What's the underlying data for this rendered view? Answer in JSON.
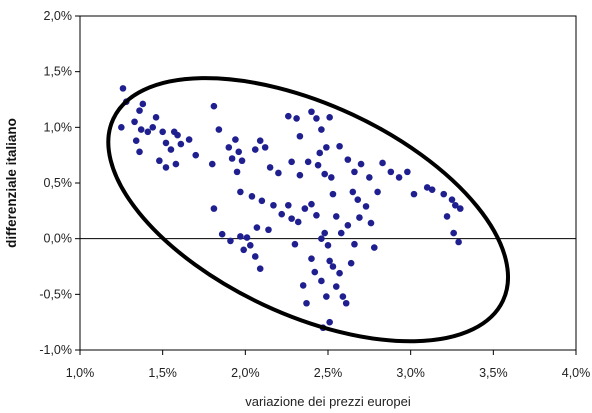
{
  "chart_data": {
    "type": "scatter",
    "title": "",
    "xlabel": "variazione dei prezzi europei",
    "ylabel": "differenziale italiano",
    "xlim": [
      1.0,
      4.0
    ],
    "ylim": [
      -1.0,
      2.0
    ],
    "x_ticks": [
      "1,0%",
      "1,5%",
      "2,0%",
      "2,5%",
      "3,0%",
      "3,5%",
      "4,0%"
    ],
    "y_ticks": [
      "2,0%",
      "1,5%",
      "1,0%",
      "0,5%",
      "0,0%",
      "-0,5%",
      "-1,0%"
    ],
    "grid": false,
    "legend": "none",
    "marker_color": "#1f1f8f",
    "reference_line_y": 0.0,
    "enclosing_ellipse": {
      "center_x": 2.38,
      "center_y": 0.26,
      "description": "rotated ellipse enclosing the scatter cloud, tilted downward to the right"
    },
    "points": [
      [
        1.26,
        1.35
      ],
      [
        1.28,
        1.23
      ],
      [
        1.25,
        1.0
      ],
      [
        1.33,
        1.05
      ],
      [
        1.34,
        0.88
      ],
      [
        1.36,
        1.15
      ],
      [
        1.38,
        1.21
      ],
      [
        1.37,
        0.98
      ],
      [
        1.41,
        0.96
      ],
      [
        1.44,
        1.0
      ],
      [
        1.46,
        1.09
      ],
      [
        1.5,
        0.96
      ],
      [
        1.52,
        0.86
      ],
      [
        1.55,
        0.8
      ],
      [
        1.57,
        0.96
      ],
      [
        1.59,
        0.93
      ],
      [
        1.61,
        0.85
      ],
      [
        1.66,
        0.89
      ],
      [
        1.7,
        0.75
      ],
      [
        1.48,
        0.7
      ],
      [
        1.52,
        0.64
      ],
      [
        1.58,
        0.67
      ],
      [
        1.36,
        0.78
      ],
      [
        1.81,
        1.19
      ],
      [
        1.84,
        0.98
      ],
      [
        1.8,
        0.67
      ],
      [
        1.9,
        0.82
      ],
      [
        1.92,
        0.72
      ],
      [
        1.94,
        0.89
      ],
      [
        1.96,
        0.78
      ],
      [
        1.95,
        0.6
      ],
      [
        1.98,
        0.7
      ],
      [
        2.06,
        0.8
      ],
      [
        2.12,
        0.82
      ],
      [
        2.09,
        0.88
      ],
      [
        2.15,
        0.64
      ],
      [
        2.2,
        0.59
      ],
      [
        2.26,
        1.1
      ],
      [
        2.31,
        1.08
      ],
      [
        2.33,
        0.92
      ],
      [
        2.4,
        1.14
      ],
      [
        2.43,
        1.08
      ],
      [
        2.46,
        0.98
      ],
      [
        2.49,
        0.82
      ],
      [
        2.51,
        1.09
      ],
      [
        2.28,
        0.69
      ],
      [
        2.33,
        0.57
      ],
      [
        2.38,
        0.69
      ],
      [
        2.44,
        0.66
      ],
      [
        2.48,
        0.58
      ],
      [
        2.52,
        0.55
      ],
      [
        2.45,
        0.77
      ],
      [
        2.57,
        0.83
      ],
      [
        2.62,
        0.71
      ],
      [
        2.66,
        0.6
      ],
      [
        2.7,
        0.67
      ],
      [
        2.75,
        0.55
      ],
      [
        2.8,
        0.42
      ],
      [
        2.83,
        0.68
      ],
      [
        2.88,
        0.6
      ],
      [
        2.93,
        0.55
      ],
      [
        2.98,
        0.6
      ],
      [
        3.02,
        0.4
      ],
      [
        3.1,
        0.46
      ],
      [
        3.13,
        0.44
      ],
      [
        3.2,
        0.4
      ],
      [
        3.25,
        0.35
      ],
      [
        3.27,
        0.3
      ],
      [
        3.3,
        0.27
      ],
      [
        3.22,
        0.2
      ],
      [
        3.26,
        0.05
      ],
      [
        3.29,
        -0.03
      ],
      [
        1.81,
        0.27
      ],
      [
        1.86,
        0.04
      ],
      [
        1.91,
        -0.02
      ],
      [
        1.97,
        0.02
      ],
      [
        2.01,
        0.01
      ],
      [
        2.03,
        -0.06
      ],
      [
        1.99,
        -0.1
      ],
      [
        2.06,
        -0.16
      ],
      [
        2.09,
        -0.27
      ],
      [
        1.97,
        0.42
      ],
      [
        2.04,
        0.38
      ],
      [
        2.1,
        0.34
      ],
      [
        2.07,
        0.1
      ],
      [
        2.14,
        0.08
      ],
      [
        2.17,
        0.3
      ],
      [
        2.22,
        0.22
      ],
      [
        2.26,
        0.3
      ],
      [
        2.28,
        0.18
      ],
      [
        2.32,
        0.15
      ],
      [
        2.36,
        0.27
      ],
      [
        2.4,
        0.31
      ],
      [
        2.43,
        0.21
      ],
      [
        2.3,
        -0.05
      ],
      [
        2.35,
        -0.42
      ],
      [
        2.37,
        -0.58
      ],
      [
        2.4,
        -0.18
      ],
      [
        2.42,
        -0.3
      ],
      [
        2.46,
        0.0
      ],
      [
        2.48,
        0.05
      ],
      [
        2.5,
        -0.06
      ],
      [
        2.46,
        -0.38
      ],
      [
        2.49,
        -0.52
      ],
      [
        2.51,
        -0.2
      ],
      [
        2.53,
        -0.25
      ],
      [
        2.55,
        -0.43
      ],
      [
        2.57,
        -0.31
      ],
      [
        2.59,
        -0.52
      ],
      [
        2.61,
        -0.58
      ],
      [
        2.55,
        0.2
      ],
      [
        2.58,
        0.05
      ],
      [
        2.62,
        0.12
      ],
      [
        2.64,
        -0.22
      ],
      [
        2.66,
        -0.05
      ],
      [
        2.69,
        0.19
      ],
      [
        2.73,
        0.29
      ],
      [
        2.76,
        0.14
      ],
      [
        2.78,
        -0.08
      ],
      [
        2.47,
        -0.8
      ],
      [
        2.51,
        -0.75
      ],
      [
        2.53,
        0.4
      ],
      [
        2.65,
        0.42
      ],
      [
        2.68,
        0.35
      ]
    ]
  }
}
